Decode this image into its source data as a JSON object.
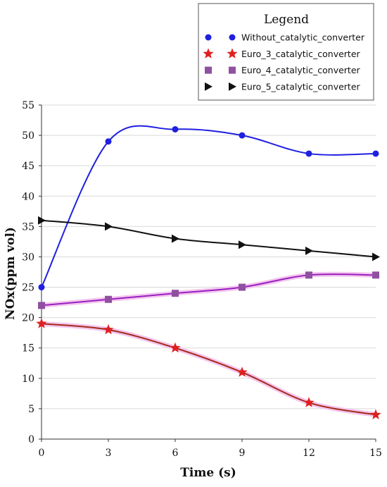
{
  "chart_data": {
    "type": "line",
    "xlabel": "Time (s)",
    "ylabel": "NOx(ppm vol)",
    "x": [
      0,
      3,
      6,
      9,
      12,
      15
    ],
    "xticks": [
      "0",
      "3",
      "6",
      "9",
      "12",
      "15"
    ],
    "yticks": [
      "0",
      "5",
      "10",
      "15",
      "20",
      "25",
      "30",
      "35",
      "40",
      "45",
      "50",
      "55"
    ],
    "xlim": [
      0,
      15
    ],
    "ylim": [
      0,
      55
    ],
    "grid": "horizontal",
    "legend": {
      "title": "Legend",
      "position": "top-right"
    },
    "series": [
      {
        "name": "Without_catalytic_converter",
        "values": [
          25,
          49,
          51,
          50,
          47,
          47
        ],
        "color": "#1f1fe0",
        "marker": "circle",
        "glow": false
      },
      {
        "name": "Euro_3_catalytic_converter",
        "values": [
          19,
          18,
          15,
          11,
          6,
          4
        ],
        "color": "#a52a1a",
        "marker": "star",
        "marker_color": "#e02020",
        "glow": true
      },
      {
        "name": "Euro_4_catalytic_converter",
        "values": [
          22,
          23,
          24,
          25,
          27,
          27
        ],
        "color": "#9a1fc0",
        "marker": "square",
        "marker_color": "#9050a0",
        "glow": true
      },
      {
        "name": "Euro_5_catalytic_converter",
        "values": [
          36,
          35,
          33,
          32,
          31,
          30
        ],
        "color": "#111111",
        "marker": "triangle-right",
        "glow": false
      }
    ]
  }
}
